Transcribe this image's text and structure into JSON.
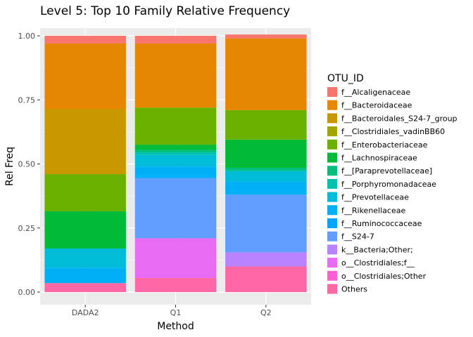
{
  "chart_data": {
    "type": "bar",
    "stacked": true,
    "title": "Level 5: Top 10 Family Relative Frequency",
    "xlabel": "Method",
    "ylabel": "Rel Freq",
    "ylim": [
      0,
      1
    ],
    "yticks": [
      0,
      0.25,
      0.5,
      0.75,
      1
    ],
    "ytick_labels": [
      "0.00",
      "0.25",
      "0.50",
      "0.75",
      "1.00"
    ],
    "categories": [
      "DADA2",
      "Q1",
      "Q2"
    ],
    "grid": true,
    "legend": {
      "title": "OTU_ID",
      "position": "right"
    },
    "series": [
      {
        "name": "f__Alcaligenaceae",
        "color": "#F8766D",
        "values": [
          0.03,
          0.03,
          0.015
        ]
      },
      {
        "name": "f__Bacteroidaceae",
        "color": "#E58700",
        "values": [
          0.255,
          0.25,
          0.28
        ]
      },
      {
        "name": "f__Bacteroidales_S24-7_group",
        "color": "#C99800",
        "values": [
          0.255,
          0,
          0
        ]
      },
      {
        "name": "f__Clostridiales_vadinBB60",
        "color": "#A3A500",
        "values": [
          0,
          0,
          0
        ]
      },
      {
        "name": "f__Enterobacteriaceae",
        "color": "#6BB100",
        "values": [
          0.145,
          0.145,
          0.115
        ]
      },
      {
        "name": "f__Lachnospiraceae",
        "color": "#00BA38",
        "values": [
          0.145,
          0.02,
          0.11
        ]
      },
      {
        "name": "f__[Paraprevotellaceae]",
        "color": "#00BF7D",
        "values": [
          0,
          0.01,
          0.01
        ]
      },
      {
        "name": "f__Porphyromonadaceae",
        "color": "#00C0AF",
        "values": [
          0,
          0.01,
          0.005
        ]
      },
      {
        "name": "f__Prevotellaceae",
        "color": "#00BCD8",
        "values": [
          0.075,
          0.045,
          0.04
        ]
      },
      {
        "name": "f__Rikenellaceae",
        "color": "#00B0F6",
        "values": [
          0.06,
          0.045,
          0.05
        ]
      },
      {
        "name": "f__Ruminococcaceae",
        "color": "#00A5FF",
        "values": [
          0,
          0,
          0
        ]
      },
      {
        "name": "f__S24-7",
        "color": "#619CFF",
        "values": [
          0,
          0.235,
          0.225
        ]
      },
      {
        "name": "k__Bacteria;Other;",
        "color": "#B983FF",
        "values": [
          0,
          0,
          0.055
        ]
      },
      {
        "name": "o__Clostridiales;f__",
        "color": "#E76BF3",
        "values": [
          0,
          0.155,
          0
        ]
      },
      {
        "name": "o__Clostridiales;Other",
        "color": "#FD61D1",
        "values": [
          0,
          0,
          0
        ]
      },
      {
        "name": "Others",
        "color": "#FF67A4",
        "values": [
          0.035,
          0.055,
          0.1
        ]
      }
    ]
  }
}
